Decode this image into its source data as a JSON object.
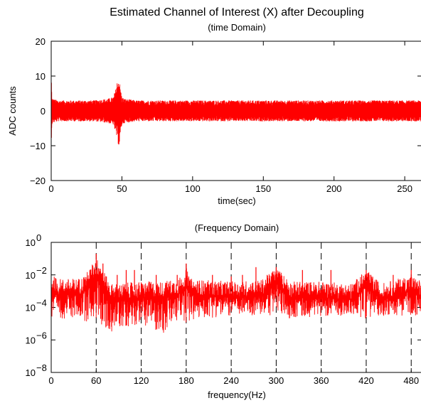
{
  "title": "Estimated Channel of Interest (X) after Decoupling",
  "chart_data": [
    {
      "type": "line",
      "subtitle": "(time Domain)",
      "xlabel": "time(sec)",
      "ylabel": "ADC counts",
      "xlim": [
        0,
        262
      ],
      "ylim": [
        -20,
        20
      ],
      "xticks": [
        0,
        50,
        100,
        150,
        200,
        250
      ],
      "xtick_labels": [
        "0",
        "50",
        "100",
        "150",
        "200",
        "250"
      ],
      "yticks": [
        -20,
        -10,
        0,
        10,
        20
      ],
      "ytick_labels": [
        "−20",
        "−10",
        "0",
        "10",
        "20"
      ],
      "grid": false,
      "color": "#ff0000",
      "series": [
        {
          "x": [
            0,
            0.5,
            1,
            5,
            10,
            20,
            30,
            40,
            44,
            46,
            47,
            48,
            49,
            50,
            52,
            60,
            80,
            100,
            120,
            150,
            180,
            200,
            230,
            250,
            262
          ],
          "upper": [
            12.5,
            4,
            3.5,
            3,
            3,
            3,
            3,
            3.5,
            4,
            7,
            9.3,
            9,
            6.5,
            4,
            3.5,
            3,
            3,
            3,
            3,
            3,
            3,
            3,
            3,
            3,
            3
          ],
          "lower": [
            -10,
            -4,
            -3.5,
            -3,
            -3,
            -3,
            -3,
            -3.5,
            -4,
            -7,
            -9,
            -10.5,
            -7,
            -4,
            -3.5,
            -3,
            -3,
            -3,
            -3,
            -3,
            -3,
            -3,
            -3,
            -3,
            -3
          ]
        }
      ]
    },
    {
      "type": "line",
      "subtitle": "(Frequency Domain)",
      "xlabel": "frequency(Hz)",
      "ylabel": "",
      "xlim": [
        0,
        494
      ],
      "ylim": [
        1e-08,
        1
      ],
      "yscale": "log",
      "xticks": [
        0,
        60,
        120,
        180,
        240,
        300,
        360,
        420,
        480
      ],
      "xtick_labels": [
        "0",
        "60",
        "120",
        "180",
        "240",
        "300",
        "360",
        "420",
        "480"
      ],
      "yticks": [
        1e-08,
        1e-06,
        0.0001,
        0.01,
        1
      ],
      "ytick_labels": [
        {
          "base": "10",
          "exp": "−8"
        },
        {
          "base": "10",
          "exp": "−6"
        },
        {
          "base": "10",
          "exp": "−4"
        },
        {
          "base": "10",
          "exp": "−2"
        },
        {
          "base": "10",
          "exp": "0"
        }
      ],
      "grid": "dashed vertical lines at multiples of 60 Hz",
      "color": "#ff0000",
      "series": [
        {
          "x": [
            0,
            10,
            20,
            30,
            40,
            50,
            55,
            60,
            65,
            70,
            75,
            80,
            90,
            120,
            150,
            175,
            180,
            185,
            200,
            240,
            280,
            300,
            320,
            360,
            400,
            420,
            440,
            480,
            494
          ],
          "upper": [
            0.01,
            0.006,
            0.006,
            0.006,
            0.007,
            0.02,
            0.05,
            0.1,
            0.08,
            0.02,
            0.006,
            0.003,
            0.003,
            0.004,
            0.004,
            0.008,
            0.03,
            0.006,
            0.005,
            0.004,
            0.005,
            0.03,
            0.004,
            0.004,
            0.003,
            0.02,
            0.003,
            0.01,
            0.004
          ],
          "lower": [
            1e-05,
            2e-05,
            2e-05,
            2e-05,
            2e-05,
            1e-05,
            2e-05,
            1e-05,
            2e-05,
            1e-06,
            2e-06,
            3e-06,
            5e-06,
            1e-05,
            2e-06,
            2e-05,
            1e-05,
            1e-05,
            2e-05,
            3e-05,
            3e-05,
            3e-05,
            2e-05,
            3e-05,
            3e-05,
            2e-05,
            3e-05,
            3e-05,
            3e-05
          ]
        }
      ],
      "spikes": [
        {
          "x": 60,
          "y": 0.2
        },
        {
          "x": 69,
          "y": 0.05
        },
        {
          "x": 88,
          "y": 0.01
        },
        {
          "x": 100,
          "y": 0.02
        },
        {
          "x": 111,
          "y": 0.02
        },
        {
          "x": 140,
          "y": 0.01
        },
        {
          "x": 168,
          "y": 0.01
        },
        {
          "x": 180,
          "y": 0.05
        },
        {
          "x": 215,
          "y": 0.01
        },
        {
          "x": 240,
          "y": 0.008
        },
        {
          "x": 255,
          "y": 0.01
        },
        {
          "x": 273,
          "y": 0.03
        },
        {
          "x": 300,
          "y": 0.03
        },
        {
          "x": 335,
          "y": 0.02
        },
        {
          "x": 373,
          "y": 0.02
        },
        {
          "x": 420,
          "y": 0.02
        },
        {
          "x": 456,
          "y": 0.01
        },
        {
          "x": 480,
          "y": 0.02
        }
      ]
    }
  ]
}
